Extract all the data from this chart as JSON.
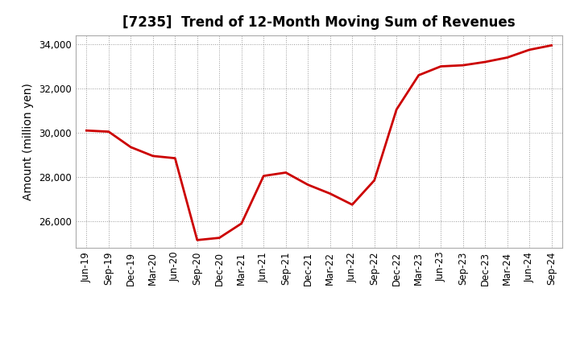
{
  "title": "[7235]  Trend of 12-Month Moving Sum of Revenues",
  "ylabel": "Amount (million yen)",
  "line_color": "#cc0000",
  "background_color": "#ffffff",
  "plot_bg_color": "#ffffff",
  "grid_color": "#999999",
  "ylim": [
    24800,
    34400
  ],
  "yticks": [
    26000,
    28000,
    30000,
    32000,
    34000
  ],
  "x_labels": [
    "Jun-19",
    "Sep-19",
    "Dec-19",
    "Mar-20",
    "Jun-20",
    "Sep-20",
    "Dec-20",
    "Mar-21",
    "Jun-21",
    "Sep-21",
    "Dec-21",
    "Mar-22",
    "Jun-22",
    "Sep-22",
    "Dec-22",
    "Mar-23",
    "Jun-23",
    "Sep-23",
    "Dec-23",
    "Mar-24",
    "Jun-24",
    "Sep-24"
  ],
  "values": [
    30100,
    30050,
    29350,
    28950,
    28850,
    25150,
    25250,
    25900,
    28050,
    28200,
    27650,
    27250,
    26750,
    27850,
    31050,
    32600,
    33000,
    33050,
    33200,
    33400,
    33750,
    33950
  ],
  "title_fontsize": 12,
  "axis_label_fontsize": 10,
  "tick_fontsize": 8.5,
  "line_width": 2.0
}
